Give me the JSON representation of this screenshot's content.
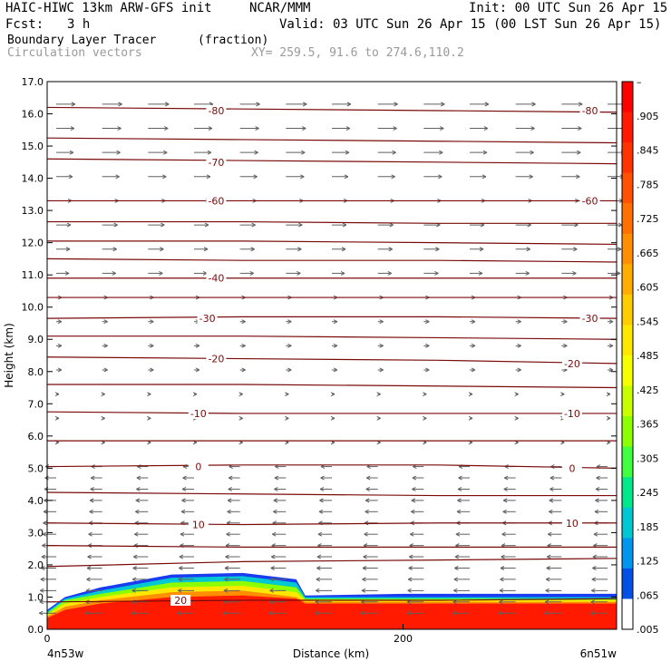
{
  "header": {
    "model": "HAIC-HIWC 13km ARW-GFS init",
    "org": "NCAR/MMM",
    "init": "Init: 00 UTC Sun 26 Apr 15",
    "fcst_label": "Fcst:",
    "fcst_value": "3 h",
    "valid": "Valid: 03 UTC Sun 26 Apr 15 (00 LST Sun 26 Apr 15)",
    "field1": "Boundary Layer Tracer",
    "field1_units": "(fraction)",
    "field2": "Circulation vectors",
    "xy": "XY= 259.5, 91.6 to 274.6,110.2"
  },
  "chart_data": {
    "type": "heatmap",
    "ylabel": "Height (km)",
    "xlabel": "Distance (km)",
    "ylim": [
      0.0,
      17.0
    ],
    "yticks": [
      "0.0",
      "1.0",
      "2.0",
      "3.0",
      "4.0",
      "5.0",
      "6.0",
      "7.0",
      "8.0",
      "9.0",
      "10.0",
      "11.0",
      "12.0",
      "13.0",
      "14.0",
      "15.0",
      "16.0",
      "17.0"
    ],
    "xlim": [
      0,
      320
    ],
    "xticks": [
      {
        "value": 0,
        "label": "0"
      },
      {
        "value": 200,
        "label": "200"
      }
    ],
    "x_endpoints": {
      "left": "4n53w",
      "right": "6n51w"
    },
    "colorbar": {
      "labels": [
        "–",
        ".905",
        ".845",
        ".785",
        ".725",
        ".665",
        ".605",
        ".545",
        ".485",
        ".425",
        ".365",
        ".305",
        ".245",
        ".185",
        ".125",
        ".065",
        ".005"
      ],
      "colors": [
        "#ff0000",
        "#ff1a00",
        "#ff3300",
        "#ff5200",
        "#ff7000",
        "#ff8f00",
        "#ffad00",
        "#ffcc00",
        "#ffe800",
        "#f5ff00",
        "#c8ff00",
        "#8cff00",
        "#40ff40",
        "#00e88c",
        "#00c8d2",
        "#0096f0",
        "#0050e6",
        "#ffffff"
      ]
    },
    "contour_labels": [
      {
        "value": "-80",
        "x": 95,
        "y": 16.1
      },
      {
        "value": "-80",
        "x": 305,
        "y": 16.1
      },
      {
        "value": "-70",
        "x": 95,
        "y": 14.5
      },
      {
        "value": "-60",
        "x": 95,
        "y": 13.3
      },
      {
        "value": "-60",
        "x": 305,
        "y": 13.3
      },
      {
        "value": "-40",
        "x": 95,
        "y": 10.9
      },
      {
        "value": "-30",
        "x": 90,
        "y": 9.65
      },
      {
        "value": "-30",
        "x": 305,
        "y": 9.65
      },
      {
        "value": "-20",
        "x": 95,
        "y": 8.4
      },
      {
        "value": "-20",
        "x": 295,
        "y": 8.25
      },
      {
        "value": "-10",
        "x": 85,
        "y": 6.7
      },
      {
        "value": "-10",
        "x": 295,
        "y": 6.7
      },
      {
        "value": "0",
        "x": 85,
        "y": 5.05
      },
      {
        "value": "0",
        "x": 295,
        "y": 5.0
      },
      {
        "value": "10",
        "x": 85,
        "y": 3.25
      },
      {
        "value": "10",
        "x": 295,
        "y": 3.3
      },
      {
        "value": "20",
        "x": 75,
        "y": 0.9
      }
    ],
    "contour_lines": [
      {
        "y": [
          16.2,
          16.15,
          16.1,
          16.05
        ]
      },
      {
        "y": [
          15.25,
          15.2,
          15.15,
          15.1
        ]
      },
      {
        "y": [
          14.6,
          14.55,
          14.5,
          14.45
        ]
      },
      {
        "y": [
          13.3,
          13.3,
          13.3,
          13.3
        ]
      },
      {
        "y": [
          12.65,
          12.65,
          12.6,
          12.6
        ]
      },
      {
        "y": [
          12.05,
          12.05,
          12.0,
          11.95
        ]
      },
      {
        "y": [
          11.5,
          11.45,
          11.45,
          11.4
        ]
      },
      {
        "y": [
          10.9,
          10.9,
          10.9,
          10.9
        ]
      },
      {
        "y": [
          10.3,
          10.3,
          10.3,
          10.3
        ]
      },
      {
        "y": [
          9.65,
          9.7,
          9.7,
          9.65
        ]
      },
      {
        "y": [
          9.1,
          9.1,
          9.05,
          9.0
        ]
      },
      {
        "y": [
          8.45,
          8.4,
          8.35,
          8.25
        ]
      },
      {
        "y": [
          7.6,
          7.6,
          7.55,
          7.5
        ]
      },
      {
        "y": [
          6.75,
          6.7,
          6.7,
          6.7
        ]
      },
      {
        "y": [
          5.85,
          5.85,
          5.85,
          5.85
        ]
      },
      {
        "y": [
          5.05,
          5.1,
          5.1,
          5.0
        ]
      },
      {
        "y": [
          4.25,
          4.2,
          4.15,
          4.15
        ]
      },
      {
        "y": [
          3.3,
          3.25,
          3.3,
          3.3
        ]
      },
      {
        "y": [
          2.6,
          2.55,
          2.55,
          2.55
        ]
      },
      {
        "y": [
          1.95,
          2.1,
          2.15,
          2.2
        ]
      },
      {
        "y": [
          0.85,
          0.9,
          0.9,
          0.95
        ]
      }
    ],
    "tracer_layers": [
      {
        "value": ".065",
        "top": [
          0.6,
          1.0,
          1.3,
          1.7,
          1.75,
          1.55,
          1.05,
          1.1,
          1.1,
          1.1
        ]
      },
      {
        "value": ".185",
        "top": [
          0.55,
          0.95,
          1.2,
          1.6,
          1.65,
          1.45,
          1.0,
          1.0,
          1.0,
          1.0
        ]
      },
      {
        "value": ".365",
        "top": [
          0.5,
          0.9,
          1.1,
          1.45,
          1.5,
          1.3,
          0.95,
          0.95,
          0.95,
          0.95
        ]
      },
      {
        "value": ".545",
        "top": [
          0.45,
          0.8,
          1.0,
          1.3,
          1.35,
          1.15,
          0.9,
          0.9,
          0.9,
          0.9
        ]
      },
      {
        "value": ".725",
        "top": [
          0.4,
          0.7,
          0.9,
          1.15,
          1.2,
          1.0,
          0.85,
          0.85,
          0.85,
          0.85
        ]
      },
      {
        "value": ".905",
        "top": [
          0.35,
          0.6,
          0.8,
          1.0,
          1.05,
          0.95,
          0.8,
          0.8,
          0.8,
          0.8
        ]
      }
    ],
    "tracer_x": [
      0,
      10,
      30,
      70,
      110,
      140,
      145,
      200,
      260,
      320
    ]
  }
}
